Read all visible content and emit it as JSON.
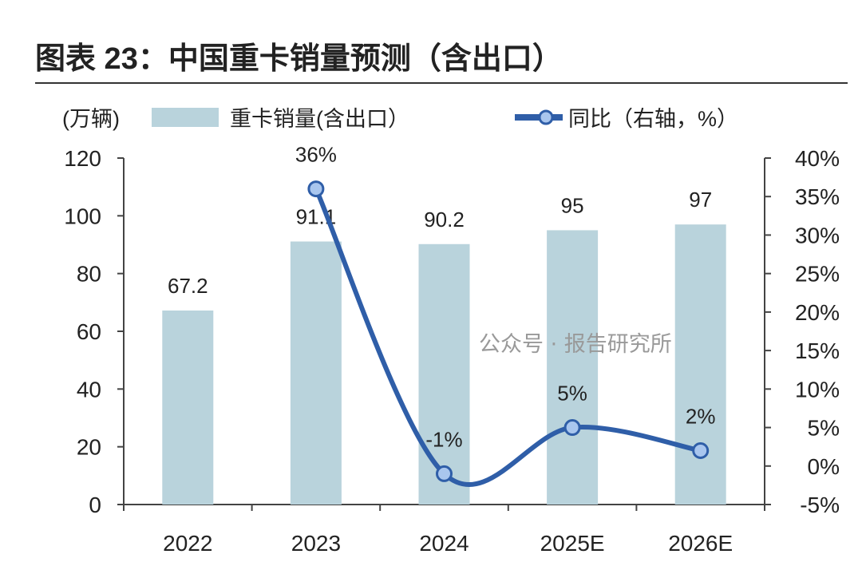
{
  "chart_data": {
    "type": "bar",
    "title": "图表 23：中国重卡销量预测（含出口）",
    "ylabel": "(万辆)",
    "categories": [
      "2022",
      "2023",
      "2024",
      "2025E",
      "2026E"
    ],
    "series": [
      {
        "name": "重卡销量(含出口）",
        "type": "bar",
        "axis": "left",
        "values": [
          67.2,
          91.1,
          90.2,
          95,
          97
        ],
        "labels": [
          "67.2",
          "91.1",
          "90.2",
          "95",
          "97"
        ],
        "color": "#b9d3dc"
      },
      {
        "name": "同比（右轴，%）",
        "type": "line",
        "axis": "right",
        "values": [
          null,
          36,
          -1,
          5,
          2
        ],
        "labels": [
          "",
          "36%",
          "-1%",
          "5%",
          "2%"
        ],
        "color": "#2f5ea8"
      }
    ],
    "ylim": [
      0,
      120
    ],
    "yticks": [
      "0",
      "20",
      "40",
      "60",
      "80",
      "100",
      "120"
    ],
    "y2lim": [
      -5,
      40
    ],
    "y2ticks": [
      "-5%",
      "0%",
      "5%",
      "10%",
      "15%",
      "20%",
      "25%",
      "30%",
      "35%",
      "40%"
    ],
    "grid": false,
    "legend_position": "top"
  },
  "watermark": "公众号 · 报告研究所"
}
